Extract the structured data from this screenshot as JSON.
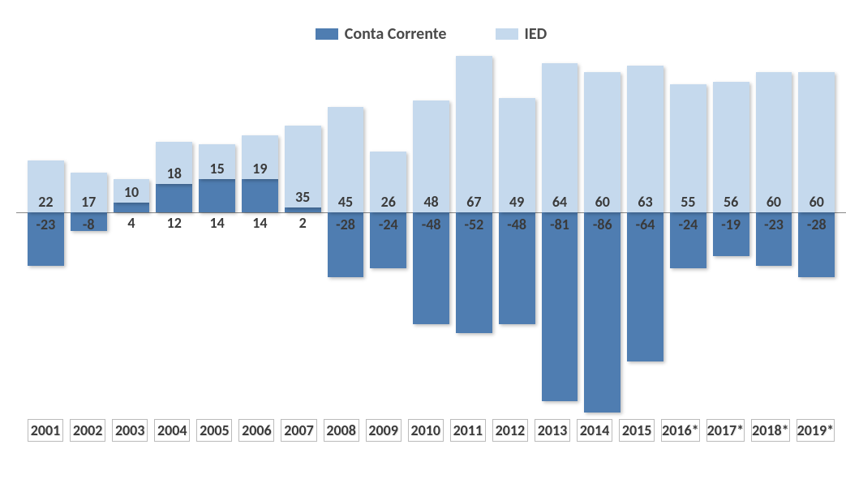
{
  "chart": {
    "type": "stacked-bar",
    "legend": {
      "series1": {
        "label": "Conta Corrente",
        "color": "#4f7db1"
      },
      "series2": {
        "label": "IED",
        "color": "#c5d9ed"
      }
    },
    "categories": [
      "2001",
      "2002",
      "2003",
      "2004",
      "2005",
      "2006",
      "2007",
      "2008",
      "2009",
      "2010",
      "2011",
      "2012",
      "2013",
      "2014",
      "2015",
      "2016*",
      "2017*",
      "2018*",
      "2019*"
    ],
    "series1_values": [
      -23,
      -8,
      4,
      12,
      14,
      14,
      2,
      -28,
      -24,
      -48,
      -52,
      -48,
      -81,
      -86,
      -64,
      -24,
      -19,
      -23,
      -28
    ],
    "series2_values": [
      22,
      17,
      10,
      18,
      15,
      19,
      35,
      45,
      26,
      48,
      67,
      49,
      64,
      60,
      63,
      55,
      56,
      60,
      60
    ],
    "ylim": [
      -86,
      67
    ],
    "background_color": "#ffffff",
    "label_fontsize": 18,
    "legend_fontsize": 20,
    "zero_line_color": "#888888",
    "bar_shadow": true,
    "text_color": "#3a3a3a",
    "category_box_border": "#bbbbbb"
  }
}
